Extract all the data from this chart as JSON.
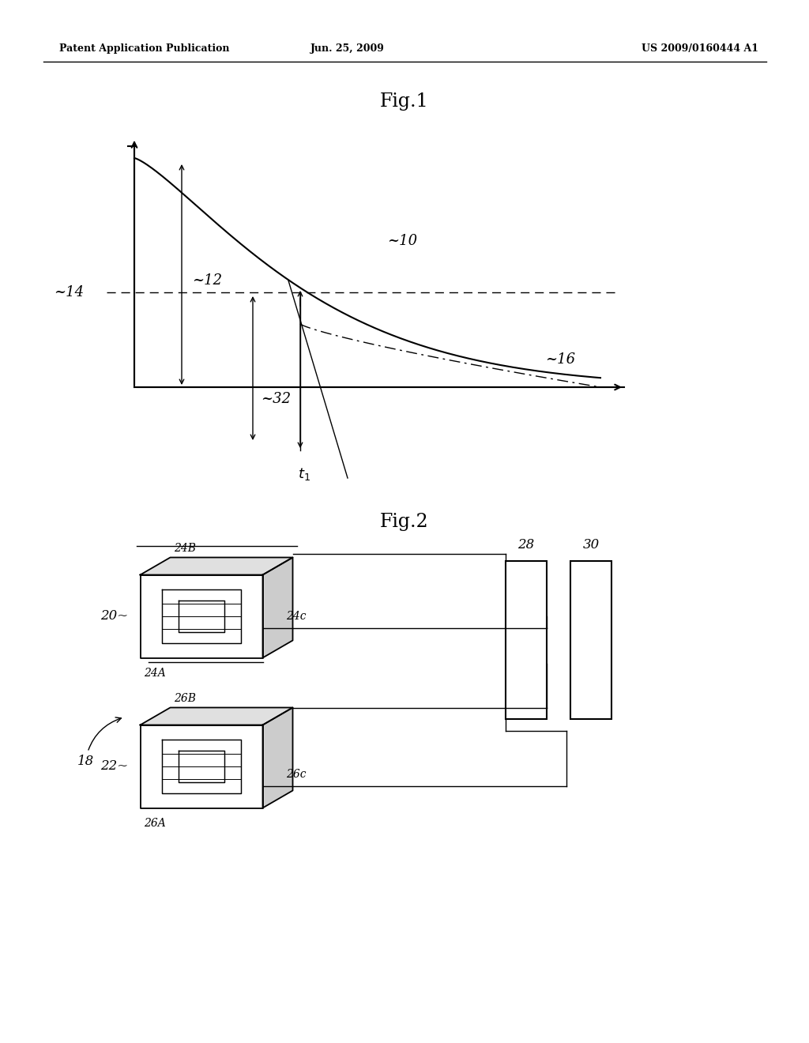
{
  "bg_color": "#ffffff",
  "header_left": "Patent Application Publication",
  "header_center": "Jun. 25, 2009",
  "header_right": "US 2009/0160444 A1",
  "fig1_title": "Fig.1",
  "fig2_title": "Fig.2"
}
